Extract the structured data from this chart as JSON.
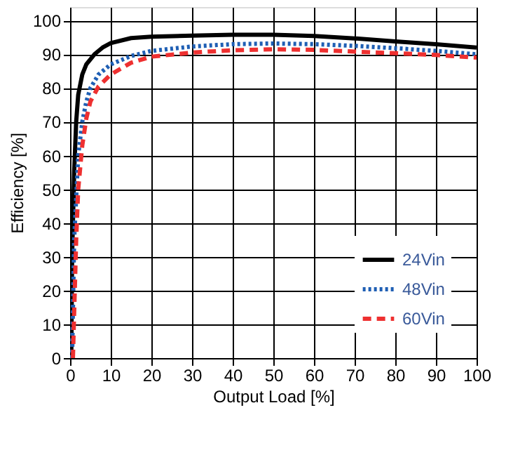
{
  "chart_data": {
    "type": "line",
    "xlabel": "Output Load [%]",
    "ylabel": "Efficiency [%]",
    "xlim": [
      0,
      100
    ],
    "xticks": [
      0,
      10,
      20,
      30,
      40,
      50,
      60,
      70,
      80,
      90,
      100
    ],
    "ylim": [
      0,
      104
    ],
    "yticks": [
      0,
      10,
      20,
      30,
      40,
      50,
      60,
      70,
      80,
      90,
      100
    ],
    "grid": true,
    "legend": "bottom right",
    "marker": "none",
    "series": [
      {
        "name": "24Vin",
        "color": "#000000",
        "line_style": "solid",
        "x": [
          0.3,
          0.5,
          1,
          1.5,
          2,
          3,
          4,
          6,
          8,
          10,
          15,
          20,
          30,
          40,
          50,
          60,
          70,
          80,
          90,
          100
        ],
        "values": [
          0,
          30,
          55,
          70,
          78,
          84,
          87,
          90,
          92,
          93.3,
          94.8,
          95.2,
          95.5,
          95.8,
          95.8,
          95.4,
          94.7,
          93.8,
          93,
          92
        ]
      },
      {
        "name": "48Vin",
        "color": "#1f5fb4",
        "line_style": "dotted",
        "x": [
          0.5,
          1,
          2,
          3,
          4,
          5,
          7,
          10,
          15,
          20,
          30,
          40,
          50,
          60,
          70,
          80,
          90,
          100
        ],
        "values": [
          0,
          35,
          60,
          70,
          76,
          80,
          84,
          87,
          89.5,
          91,
          92.3,
          93,
          93.2,
          93,
          92.5,
          91.8,
          91,
          90
        ]
      },
      {
        "name": "60Vin",
        "color": "#ee3030",
        "line_style": "dashed",
        "x": [
          0.7,
          1.5,
          2,
          3,
          4,
          5,
          7,
          10,
          15,
          20,
          30,
          40,
          50,
          60,
          70,
          80,
          90,
          100
        ],
        "values": [
          0,
          35,
          50,
          63,
          71,
          76,
          80.5,
          84,
          87.5,
          89.3,
          90.5,
          91.2,
          91.5,
          91.3,
          90.8,
          90.3,
          89.8,
          89
        ]
      }
    ]
  }
}
